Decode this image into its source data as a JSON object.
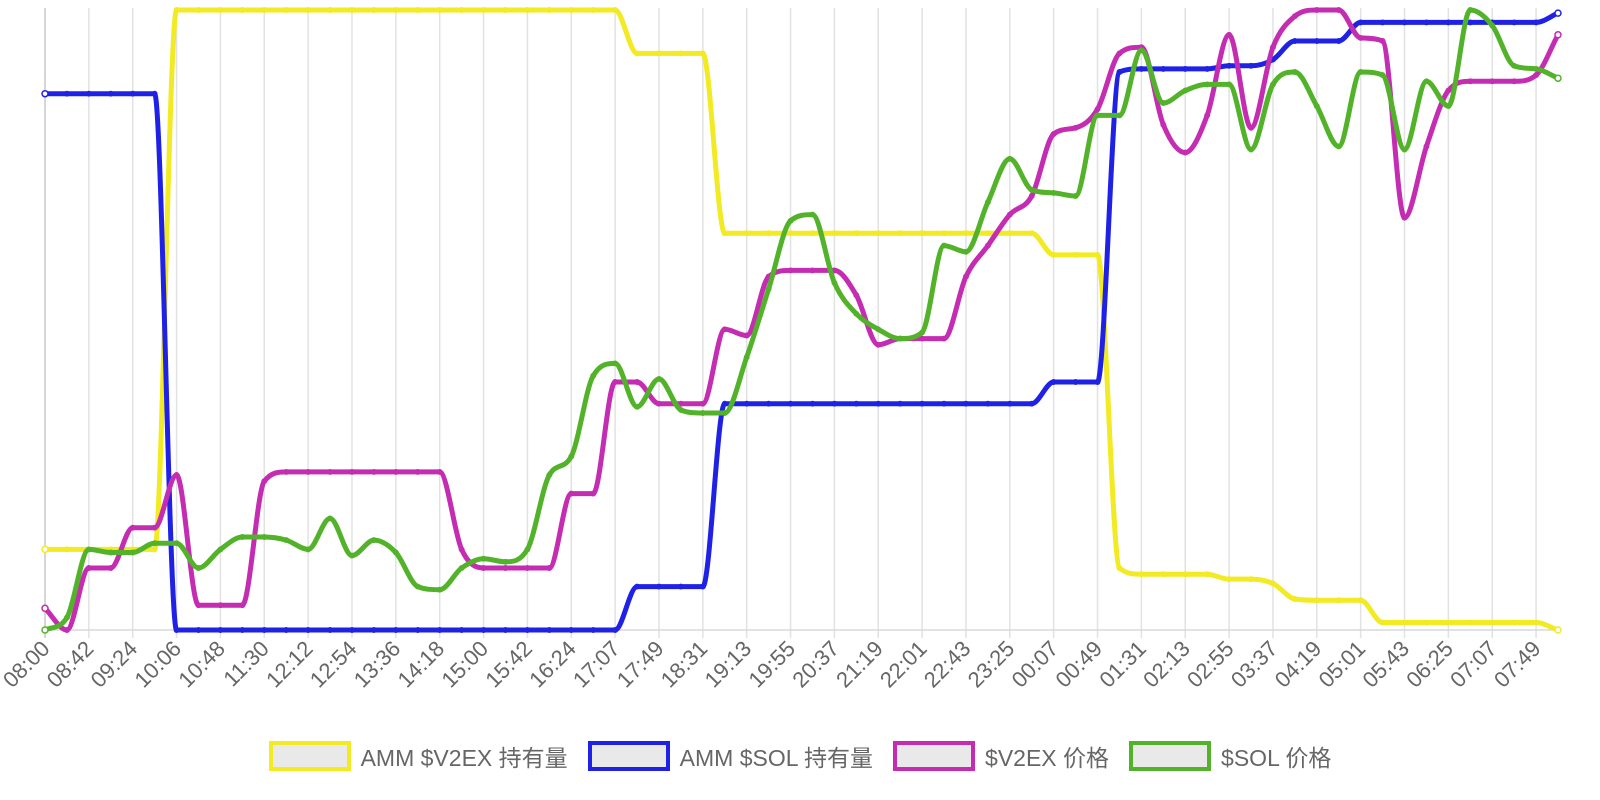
{
  "chart_data": {
    "type": "line",
    "title": "",
    "xlabel": "",
    "ylabel": "",
    "grid": "vertical",
    "legend_position": "bottom",
    "ylim": [
      0,
      100
    ],
    "x": [
      "08:00",
      "08:21",
      "08:42",
      "09:03",
      "09:24",
      "09:45",
      "10:06",
      "10:27",
      "10:48",
      "11:09",
      "11:30",
      "11:51",
      "12:12",
      "12:33",
      "12:54",
      "13:15",
      "13:36",
      "13:57",
      "14:18",
      "14:39",
      "15:00",
      "15:21",
      "15:42",
      "16:03",
      "16:24",
      "16:45",
      "17:07",
      "17:28",
      "17:49",
      "18:10",
      "18:31",
      "18:52",
      "19:13",
      "19:34",
      "19:55",
      "20:16",
      "20:37",
      "20:58",
      "21:19",
      "21:40",
      "22:01",
      "22:22",
      "22:43",
      "23:04",
      "23:25",
      "23:46",
      "00:07",
      "00:28",
      "00:49",
      "01:10",
      "01:31",
      "01:52",
      "02:13",
      "02:34",
      "02:55",
      "03:16",
      "03:37",
      "03:58",
      "04:19",
      "04:40",
      "05:01",
      "05:22",
      "05:43",
      "06:04",
      "06:25",
      "06:46",
      "07:07",
      "07:28",
      "07:49",
      "08:00"
    ],
    "x_ticks": [
      "08:00",
      "08:42",
      "09:24",
      "10:06",
      "10:48",
      "11:30",
      "12:12",
      "12:54",
      "13:36",
      "14:18",
      "15:00",
      "15:42",
      "16:24",
      "17:07",
      "17:49",
      "18:31",
      "19:13",
      "19:55",
      "20:37",
      "21:19",
      "22:01",
      "22:43",
      "23:25",
      "00:07",
      "00:49",
      "01:31",
      "02:13",
      "02:55",
      "03:37",
      "04:19",
      "05:01",
      "05:43",
      "06:25",
      "07:07",
      "07:49"
    ],
    "series": [
      {
        "name": "AMM $V2EX 持有量",
        "color": "#f2ea22",
        "values": [
          13,
          13,
          13,
          13,
          13,
          13,
          100,
          100,
          100,
          100,
          100,
          100,
          100,
          100,
          100,
          100,
          100,
          100,
          100,
          100,
          100,
          100,
          100,
          100,
          100,
          100,
          100,
          93,
          93,
          93,
          93,
          64,
          64,
          64,
          64,
          64,
          64,
          64,
          64,
          64,
          64,
          64,
          64,
          64,
          64,
          64,
          60.5,
          60.5,
          60.5,
          10,
          9,
          9,
          9,
          9,
          8.2,
          8.2,
          7.5,
          5,
          4.8,
          4.8,
          4.8,
          1.2,
          1.2,
          1.2,
          1.2,
          1.2,
          1.2,
          1.2,
          1.2,
          0
        ]
      },
      {
        "name": "AMM $SOL 持有量",
        "color": "#1f22e6",
        "values": [
          86.5,
          86.5,
          86.5,
          86.5,
          86.5,
          86.5,
          0,
          0,
          0,
          0,
          0,
          0,
          0,
          0,
          0,
          0,
          0,
          0,
          0,
          0,
          0,
          0,
          0,
          0,
          0,
          0,
          0,
          7,
          7,
          7,
          7,
          36.5,
          36.5,
          36.5,
          36.5,
          36.5,
          36.5,
          36.5,
          36.5,
          36.5,
          36.5,
          36.5,
          36.5,
          36.5,
          36.5,
          36.5,
          40,
          40,
          40,
          90,
          90.5,
          90.5,
          90.5,
          90.5,
          91,
          91,
          92,
          95,
          95,
          95,
          98,
          98,
          98,
          98,
          98,
          98,
          98,
          98,
          98,
          99.5
        ]
      },
      {
        "name": "$V2EX 价格",
        "color": "#c42cb2",
        "values": [
          3.5,
          0,
          10,
          10,
          16.5,
          16.5,
          25,
          4,
          4,
          4,
          24,
          25.5,
          25.5,
          25.5,
          25.5,
          25.5,
          25.5,
          25.5,
          25.5,
          13,
          10,
          10,
          10,
          10,
          22,
          22,
          40,
          40,
          36.5,
          36.5,
          36.5,
          48.5,
          47.5,
          57,
          58,
          58,
          58,
          54,
          46,
          47,
          47,
          47,
          57,
          62,
          67,
          70,
          80,
          81,
          84,
          93,
          94,
          81.5,
          77,
          83,
          96,
          81,
          94,
          99,
          100,
          100,
          95.5,
          95,
          66.5,
          78,
          87,
          88.5,
          88.5,
          88.5,
          89.5,
          96
        ]
      },
      {
        "name": "$SOL 价格",
        "color": "#52b32a",
        "values": [
          0,
          2,
          13,
          12.5,
          12.5,
          14,
          14,
          10,
          13,
          15,
          15,
          14.5,
          13,
          18,
          12,
          14.5,
          12.5,
          7,
          6.5,
          10,
          11.5,
          11,
          13,
          25,
          28,
          41,
          43,
          36,
          40.5,
          35.5,
          35,
          35,
          44,
          55,
          66,
          67,
          56,
          51,
          48.5,
          47,
          48,
          62,
          61,
          69,
          76,
          71,
          70.5,
          70,
          83,
          83,
          93.5,
          85,
          87,
          88,
          88,
          77.5,
          88,
          90,
          84.5,
          78,
          90,
          89.5,
          77.5,
          88.5,
          84.5,
          100,
          97.5,
          91,
          90.5,
          89
        ]
      }
    ]
  }
}
